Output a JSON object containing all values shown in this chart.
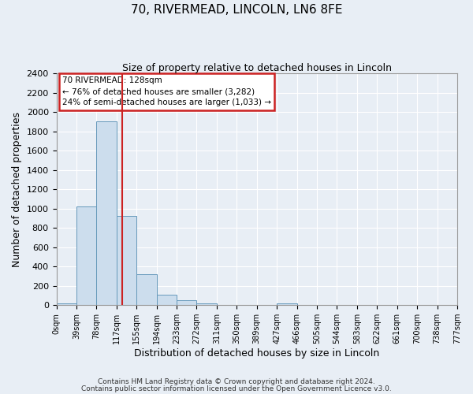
{
  "title": "70, RIVERMEAD, LINCOLN, LN6 8FE",
  "subtitle": "Size of property relative to detached houses in Lincoln",
  "xlabel": "Distribution of detached houses by size in Lincoln",
  "ylabel": "Number of detached properties",
  "bar_color": "#ccdded",
  "bar_edge_color": "#6699bb",
  "bin_labels": [
    "0sqm",
    "39sqm",
    "78sqm",
    "117sqm",
    "155sqm",
    "194sqm",
    "233sqm",
    "272sqm",
    "311sqm",
    "350sqm",
    "389sqm",
    "427sqm",
    "466sqm",
    "505sqm",
    "544sqm",
    "583sqm",
    "622sqm",
    "661sqm",
    "700sqm",
    "738sqm",
    "777sqm"
  ],
  "bar_heights": [
    20,
    1020,
    1900,
    920,
    320,
    105,
    47,
    22,
    0,
    0,
    0,
    22,
    0,
    0,
    0,
    0,
    0,
    0,
    0,
    0
  ],
  "red_line_index": 3.28,
  "ylim": [
    0,
    2400
  ],
  "yticks": [
    0,
    200,
    400,
    600,
    800,
    1000,
    1200,
    1400,
    1600,
    1800,
    2000,
    2200,
    2400
  ],
  "annotation_box_text": "70 RIVERMEAD: 128sqm\n← 76% of detached houses are smaller (3,282)\n24% of semi-detached houses are larger (1,033) →",
  "footnote1": "Contains HM Land Registry data © Crown copyright and database right 2024.",
  "footnote2": "Contains public sector information licensed under the Open Government Licence v3.0.",
  "bg_color": "#e8eef5",
  "plot_bg_color": "#e8eef5",
  "grid_color": "#ffffff",
  "annotation_box_facecolor": "#ffffff",
  "annotation_box_edgecolor": "#cc2222"
}
